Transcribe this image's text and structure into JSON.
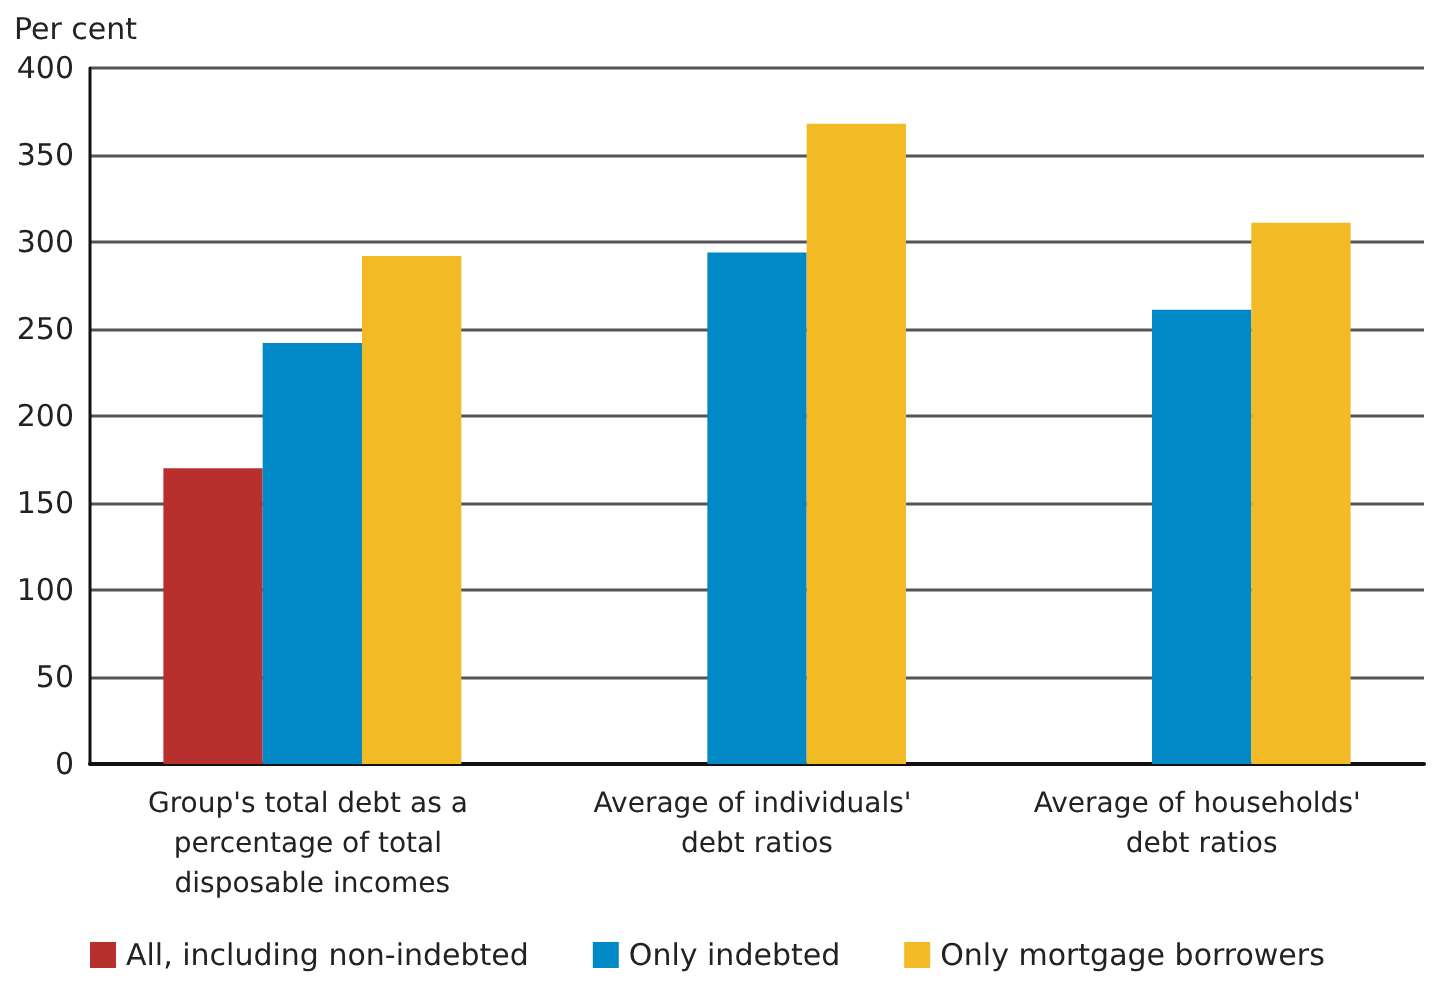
{
  "chart_data": {
    "type": "bar",
    "ylabel": "Per cent",
    "categories": [
      "Group's total debt as a percentage of total disposable incomes",
      "Average of individuals' debt ratios",
      "Average of households' debt ratios"
    ],
    "series": [
      {
        "name": "All, including non-indebted",
        "color": "#b8302e",
        "values": [
          170,
          null,
          null
        ]
      },
      {
        "name": "Only indebted",
        "color": "#0089c6",
        "values": [
          242,
          294,
          261
        ]
      },
      {
        "name": "Only mortgage borrowers",
        "color": "#f2ba24",
        "values": [
          292,
          368,
          311
        ]
      }
    ],
    "ylim": [
      0,
      400
    ],
    "yticks": [
      0,
      50,
      100,
      150,
      200,
      250,
      300,
      350,
      400
    ],
    "grid": "y",
    "legend": "bottom"
  }
}
